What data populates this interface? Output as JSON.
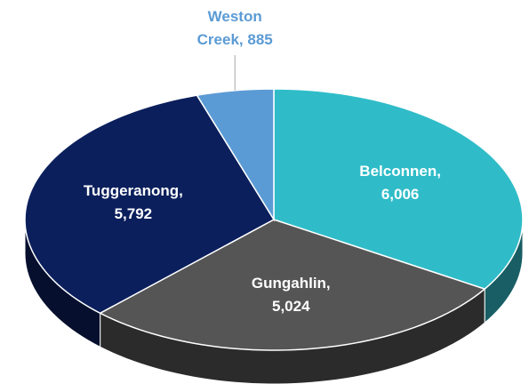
{
  "chart_data": {
    "type": "pie3d",
    "values": [
      6006,
      5024,
      5792,
      885
    ],
    "value_labels": [
      "Belconnen, 6,006",
      "Gungahlin, 5,024",
      "Tuggeranong, 5,792",
      "Weston Creek, 885"
    ],
    "colors": [
      "#2fbcc8",
      "#555555",
      "#0b1f5c",
      "#5b9bd5"
    ],
    "label_colors": [
      "#ffffff",
      "#ffffff",
      "#ffffff",
      "#5b9bd5"
    ]
  }
}
